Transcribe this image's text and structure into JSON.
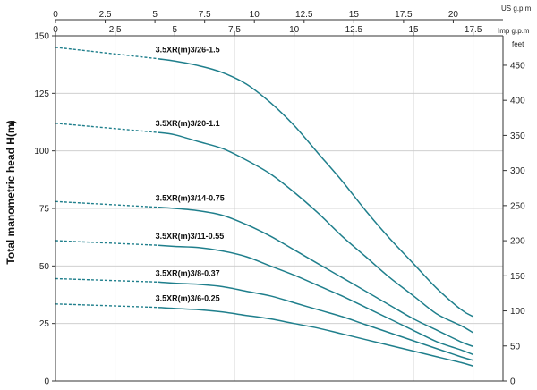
{
  "chart_data": {
    "type": "line",
    "ylabel": "Total manometric head H(m)",
    "ylabel_arrow": "▲",
    "x_axis_us": {
      "label": "US g.p.m",
      "ticks": [
        "0",
        "2.5",
        "5",
        "7.5",
        "10",
        "12.5",
        "15",
        "17.5",
        "20"
      ],
      "range": [
        0,
        22.5
      ]
    },
    "x_axis_imp": {
      "label": "Imp g.p.m",
      "ticks": [
        "0",
        "2.5",
        "5",
        "7.5",
        "10",
        "12.5",
        "15",
        "17.5"
      ],
      "range": [
        0,
        18.75
      ]
    },
    "y_axis_left": {
      "unit": "m",
      "ticks": [
        "0",
        "25",
        "50",
        "75",
        "100",
        "125",
        "150"
      ],
      "range": [
        0,
        150
      ]
    },
    "y_axis_right": {
      "unit": "feet",
      "ticks": [
        "0",
        "50",
        "100",
        "150",
        "200",
        "250",
        "300",
        "350",
        "400",
        "450"
      ],
      "range": [
        0,
        492
      ]
    },
    "colors": {
      "curve": "#1f7f8c",
      "grid": "#c9c9c9",
      "axis": "#333333"
    },
    "series": [
      {
        "name": "3.5XR(m)3/26-1.5",
        "dashed_to_imp": 4.3,
        "x": [
          0,
          4.3,
          5,
          6,
          7,
          8,
          9,
          10,
          11,
          12,
          13,
          14,
          15,
          16,
          17,
          17.5
        ],
        "y": [
          145,
          140,
          139,
          137,
          134,
          129,
          121,
          111,
          99,
          87,
          74,
          62,
          51,
          40,
          31,
          28
        ]
      },
      {
        "name": "3.5XR(m)3/20-1.1",
        "dashed_to_imp": 4.3,
        "x": [
          0,
          4.3,
          5,
          6,
          7,
          8,
          9,
          10,
          11,
          12,
          13,
          14,
          15,
          16,
          17,
          17.5
        ],
        "y": [
          112,
          108,
          107,
          104,
          101,
          96,
          90,
          82,
          73,
          63,
          54,
          45,
          37,
          29,
          24,
          21
        ]
      },
      {
        "name": "3.5XR(m)3/14-0.75",
        "dashed_to_imp": 4.3,
        "x": [
          0,
          4.3,
          5,
          6,
          7,
          8,
          9,
          10,
          11,
          12,
          13,
          14,
          15,
          16,
          17,
          17.5
        ],
        "y": [
          78,
          75.5,
          75,
          74,
          72,
          68,
          63,
          57,
          51,
          45,
          39,
          33,
          27,
          22,
          17,
          15
        ]
      },
      {
        "name": "3.5XR(m)3/11-0.55",
        "dashed_to_imp": 4.3,
        "x": [
          0,
          4.3,
          5,
          6,
          7,
          8,
          9,
          10,
          11,
          12,
          13,
          14,
          15,
          16,
          17,
          17.5
        ],
        "y": [
          61,
          59,
          58.5,
          58,
          56.5,
          54,
          50,
          46,
          41.5,
          37,
          32,
          27,
          22,
          17,
          13.5,
          11.5
        ]
      },
      {
        "name": "3.5XR(m)3/8-0.37",
        "dashed_to_imp": 4.3,
        "x": [
          0,
          4.3,
          5,
          6,
          7,
          8,
          9,
          10,
          11,
          12,
          13,
          14,
          15,
          16,
          17,
          17.5
        ],
        "y": [
          44.5,
          43,
          42.5,
          42,
          41,
          39,
          37,
          34,
          31,
          28,
          24.5,
          21,
          17.5,
          14,
          10.5,
          9
        ]
      },
      {
        "name": "3.5XR(m)3/6-0.25",
        "dashed_to_imp": 4.3,
        "x": [
          0,
          4.3,
          5,
          6,
          7,
          8,
          9,
          10,
          11,
          12,
          13,
          14,
          15,
          16,
          17,
          17.5
        ],
        "y": [
          33.5,
          32,
          31.5,
          31,
          30,
          28.5,
          27,
          25,
          23,
          20.5,
          18,
          15.5,
          13,
          10.5,
          8,
          6.5
        ]
      }
    ]
  }
}
